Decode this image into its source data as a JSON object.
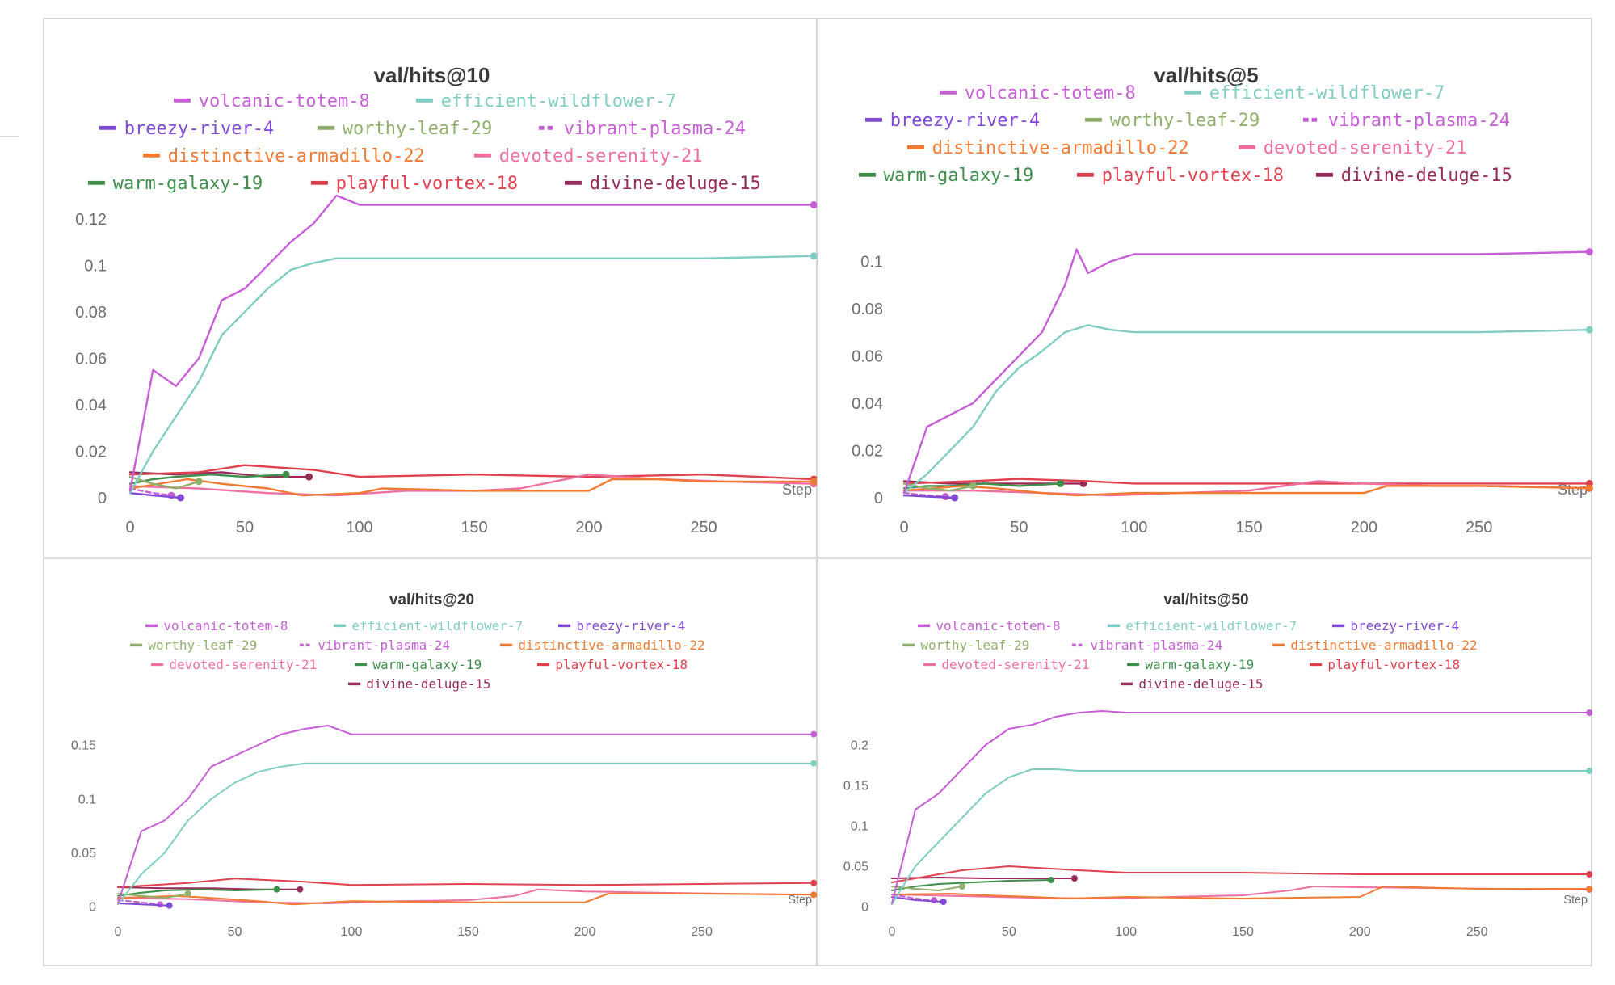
{
  "series_colors": {
    "volcanic-totem-8": "#c65ed6",
    "efficient-wildflower-7": "#80cdc1",
    "breezy-river-4": "#8049d6",
    "worthy-leaf-29": "#8fb06a",
    "vibrant-plasma-24": "#c65ed6",
    "distinctive-armadillo-22": "#f07a32",
    "devoted-serenity-21": "#ef6f9f",
    "warm-galaxy-19": "#3e8f4b",
    "playful-vortex-18": "#e0414f",
    "divine-deluge-15": "#962b5a"
  },
  "chart_data": [
    {
      "type": "line",
      "title": "val/hits@10",
      "xlabel": "Step",
      "ylabel": "",
      "xlim": [
        0,
        300
      ],
      "ylim": [
        0,
        0.13
      ],
      "x_ticks": [
        "0",
        "50",
        "100",
        "150",
        "200",
        "250"
      ],
      "y_ticks": [
        "0",
        "0.02",
        "0.04",
        "0.06",
        "0.08",
        "0.1",
        "0.12"
      ],
      "legend": [
        "volcanic-totem-8",
        "efficient-wildflower-7",
        "breezy-river-4",
        "worthy-leaf-29",
        "vibrant-plasma-24",
        "distinctive-armadillo-22",
        "devoted-serenity-21",
        "warm-galaxy-19",
        "playful-vortex-18",
        "divine-deluge-15"
      ],
      "series": [
        {
          "name": "volcanic-totem-8",
          "x": [
            0,
            10,
            20,
            30,
            40,
            50,
            60,
            70,
            80,
            90,
            100,
            150,
            200,
            250,
            298
          ],
          "y": [
            0.003,
            0.055,
            0.048,
            0.06,
            0.085,
            0.09,
            0.1,
            0.11,
            0.118,
            0.13,
            0.126,
            0.126,
            0.126,
            0.126,
            0.126
          ]
        },
        {
          "name": "efficient-wildflower-7",
          "x": [
            0,
            10,
            20,
            30,
            40,
            50,
            60,
            70,
            80,
            90,
            100,
            150,
            200,
            250,
            298
          ],
          "y": [
            0.002,
            0.02,
            0.035,
            0.05,
            0.07,
            0.08,
            0.09,
            0.098,
            0.101,
            0.103,
            0.103,
            0.103,
            0.103,
            0.103,
            0.104
          ]
        },
        {
          "name": "breezy-river-4",
          "x": [
            0,
            10,
            22
          ],
          "y": [
            0.002,
            0.001,
            0.0
          ]
        },
        {
          "name": "worthy-leaf-29",
          "x": [
            0,
            10,
            20,
            30
          ],
          "y": [
            0.009,
            0.006,
            0.004,
            0.007
          ]
        },
        {
          "name": "vibrant-plasma-24",
          "x": [
            0,
            10,
            18
          ],
          "y": [
            0.004,
            0.002,
            0.001
          ]
        },
        {
          "name": "distinctive-armadillo-22",
          "x": [
            0,
            25,
            40,
            60,
            75,
            100,
            110,
            150,
            200,
            210,
            230,
            250,
            298
          ],
          "y": [
            0.004,
            0.008,
            0.006,
            0.004,
            0.001,
            0.002,
            0.004,
            0.003,
            0.003,
            0.008,
            0.008,
            0.007,
            0.007
          ]
        },
        {
          "name": "devoted-serenity-21",
          "x": [
            0,
            30,
            60,
            90,
            120,
            150,
            170,
            200,
            230,
            260,
            298
          ],
          "y": [
            0.005,
            0.004,
            0.002,
            0.001,
            0.003,
            0.003,
            0.004,
            0.01,
            0.008,
            0.007,
            0.006
          ]
        },
        {
          "name": "warm-galaxy-19",
          "x": [
            0,
            10,
            20,
            35,
            50,
            68
          ],
          "y": [
            0.006,
            0.008,
            0.009,
            0.01,
            0.009,
            0.01
          ]
        },
        {
          "name": "playful-vortex-18",
          "x": [
            0,
            30,
            50,
            80,
            100,
            150,
            200,
            250,
            298
          ],
          "y": [
            0.01,
            0.011,
            0.014,
            0.012,
            0.009,
            0.01,
            0.009,
            0.01,
            0.008
          ]
        },
        {
          "name": "divine-deluge-15",
          "x": [
            0,
            20,
            40,
            60,
            78
          ],
          "y": [
            0.011,
            0.01,
            0.011,
            0.009,
            0.009
          ]
        }
      ]
    },
    {
      "type": "line",
      "title": "val/hits@5",
      "xlabel": "Step",
      "ylabel": "",
      "xlim": [
        0,
        300
      ],
      "ylim": [
        0,
        0.11
      ],
      "x_ticks": [
        "0",
        "50",
        "100",
        "150",
        "200",
        "250"
      ],
      "y_ticks": [
        "0",
        "0.02",
        "0.04",
        "0.06",
        "0.08",
        "0.1"
      ],
      "legend": [
        "volcanic-totem-8",
        "efficient-wildflower-7",
        "breezy-river-4",
        "worthy-leaf-29",
        "vibrant-plasma-24",
        "distinctive-armadillo-22",
        "devoted-serenity-21",
        "warm-galaxy-19",
        "playful-vortex-18",
        "divine-deluge-15"
      ],
      "series": [
        {
          "name": "volcanic-totem-8",
          "x": [
            0,
            10,
            20,
            30,
            40,
            50,
            60,
            70,
            75,
            80,
            90,
            100,
            150,
            200,
            250,
            298
          ],
          "y": [
            0.002,
            0.03,
            0.035,
            0.04,
            0.05,
            0.06,
            0.07,
            0.09,
            0.105,
            0.095,
            0.1,
            0.103,
            0.103,
            0.103,
            0.103,
            0.104
          ]
        },
        {
          "name": "efficient-wildflower-7",
          "x": [
            0,
            10,
            20,
            30,
            40,
            50,
            60,
            70,
            80,
            90,
            100,
            150,
            200,
            250,
            298
          ],
          "y": [
            0.002,
            0.01,
            0.02,
            0.03,
            0.045,
            0.055,
            0.062,
            0.07,
            0.073,
            0.071,
            0.07,
            0.07,
            0.07,
            0.07,
            0.071
          ]
        },
        {
          "name": "breezy-river-4",
          "x": [
            0,
            10,
            22
          ],
          "y": [
            0.001,
            0.0005,
            0.0
          ]
        },
        {
          "name": "worthy-leaf-29",
          "x": [
            0,
            10,
            20,
            30
          ],
          "y": [
            0.006,
            0.004,
            0.003,
            0.005
          ]
        },
        {
          "name": "vibrant-plasma-24",
          "x": [
            0,
            10,
            18
          ],
          "y": [
            0.002,
            0.001,
            0.0005
          ]
        },
        {
          "name": "distinctive-armadillo-22",
          "x": [
            0,
            25,
            40,
            60,
            75,
            100,
            150,
            200,
            210,
            250,
            298
          ],
          "y": [
            0.003,
            0.005,
            0.004,
            0.002,
            0.001,
            0.002,
            0.002,
            0.002,
            0.005,
            0.005,
            0.004
          ]
        },
        {
          "name": "devoted-serenity-21",
          "x": [
            0,
            30,
            60,
            90,
            120,
            150,
            180,
            200,
            230,
            260,
            298
          ],
          "y": [
            0.003,
            0.003,
            0.002,
            0.001,
            0.002,
            0.003,
            0.007,
            0.006,
            0.005,
            0.005,
            0.004
          ]
        },
        {
          "name": "warm-galaxy-19",
          "x": [
            0,
            10,
            20,
            35,
            50,
            68
          ],
          "y": [
            0.004,
            0.005,
            0.005,
            0.006,
            0.005,
            0.006
          ]
        },
        {
          "name": "playful-vortex-18",
          "x": [
            0,
            30,
            50,
            80,
            100,
            150,
            200,
            250,
            298
          ],
          "y": [
            0.006,
            0.007,
            0.008,
            0.007,
            0.006,
            0.006,
            0.006,
            0.006,
            0.006
          ]
        },
        {
          "name": "divine-deluge-15",
          "x": [
            0,
            20,
            40,
            60,
            78
          ],
          "y": [
            0.007,
            0.006,
            0.006,
            0.006,
            0.006
          ]
        }
      ]
    },
    {
      "type": "line",
      "title": "val/hits@20",
      "xlabel": "Step",
      "ylabel": "",
      "xlim": [
        0,
        300
      ],
      "ylim": [
        0,
        0.18
      ],
      "x_ticks": [
        "0",
        "50",
        "100",
        "150",
        "200",
        "250"
      ],
      "y_ticks": [
        "0",
        "0.05",
        "0.1",
        "0.15"
      ],
      "legend": [
        "volcanic-totem-8",
        "efficient-wildflower-7",
        "breezy-river-4",
        "worthy-leaf-29",
        "vibrant-plasma-24",
        "distinctive-armadillo-22",
        "devoted-serenity-21",
        "warm-galaxy-19",
        "playful-vortex-18",
        "divine-deluge-15"
      ],
      "series": [
        {
          "name": "volcanic-totem-8",
          "x": [
            0,
            10,
            20,
            30,
            40,
            50,
            60,
            70,
            80,
            90,
            100,
            150,
            200,
            250,
            298
          ],
          "y": [
            0.003,
            0.07,
            0.08,
            0.1,
            0.13,
            0.14,
            0.15,
            0.16,
            0.165,
            0.168,
            0.16,
            0.16,
            0.16,
            0.16,
            0.16
          ]
        },
        {
          "name": "efficient-wildflower-7",
          "x": [
            0,
            10,
            20,
            30,
            40,
            50,
            60,
            70,
            80,
            90,
            100,
            150,
            200,
            250,
            298
          ],
          "y": [
            0.002,
            0.03,
            0.05,
            0.08,
            0.1,
            0.115,
            0.125,
            0.13,
            0.133,
            0.133,
            0.133,
            0.133,
            0.133,
            0.133,
            0.133
          ]
        },
        {
          "name": "breezy-river-4",
          "x": [
            0,
            10,
            22
          ],
          "y": [
            0.003,
            0.002,
            0.001
          ]
        },
        {
          "name": "worthy-leaf-29",
          "x": [
            0,
            10,
            20,
            30
          ],
          "y": [
            0.012,
            0.01,
            0.008,
            0.012
          ]
        },
        {
          "name": "vibrant-plasma-24",
          "x": [
            0,
            10,
            18
          ],
          "y": [
            0.006,
            0.004,
            0.002
          ]
        },
        {
          "name": "distinctive-armadillo-22",
          "x": [
            0,
            25,
            40,
            60,
            75,
            100,
            150,
            200,
            210,
            250,
            298
          ],
          "y": [
            0.008,
            0.01,
            0.008,
            0.005,
            0.002,
            0.005,
            0.004,
            0.004,
            0.012,
            0.012,
            0.011
          ]
        },
        {
          "name": "devoted-serenity-21",
          "x": [
            0,
            30,
            60,
            90,
            120,
            150,
            170,
            180,
            200,
            230,
            260,
            298
          ],
          "y": [
            0.008,
            0.007,
            0.004,
            0.003,
            0.005,
            0.006,
            0.01,
            0.016,
            0.014,
            0.013,
            0.012,
            0.011
          ]
        },
        {
          "name": "warm-galaxy-19",
          "x": [
            0,
            10,
            20,
            35,
            50,
            68
          ],
          "y": [
            0.01,
            0.013,
            0.015,
            0.016,
            0.015,
            0.016
          ]
        },
        {
          "name": "playful-vortex-18",
          "x": [
            0,
            30,
            50,
            80,
            100,
            150,
            200,
            250,
            298
          ],
          "y": [
            0.018,
            0.022,
            0.026,
            0.023,
            0.02,
            0.021,
            0.02,
            0.021,
            0.022
          ]
        },
        {
          "name": "divine-deluge-15",
          "x": [
            0,
            20,
            40,
            60,
            78
          ],
          "y": [
            0.018,
            0.017,
            0.017,
            0.016,
            0.016
          ]
        }
      ]
    },
    {
      "type": "line",
      "title": "val/hits@50",
      "xlabel": "Step",
      "ylabel": "",
      "xlim": [
        0,
        300
      ],
      "ylim": [
        0,
        0.25
      ],
      "x_ticks": [
        "0",
        "50",
        "100",
        "150",
        "200",
        "250"
      ],
      "y_ticks": [
        "0",
        "0.05",
        "0.1",
        "0.15",
        "0.2"
      ],
      "legend": [
        "volcanic-totem-8",
        "efficient-wildflower-7",
        "breezy-river-4",
        "worthy-leaf-29",
        "vibrant-plasma-24",
        "distinctive-armadillo-22",
        "devoted-serenity-21",
        "warm-galaxy-19",
        "playful-vortex-18",
        "divine-deluge-15"
      ],
      "series": [
        {
          "name": "volcanic-totem-8",
          "x": [
            0,
            10,
            20,
            30,
            40,
            50,
            60,
            70,
            80,
            90,
            100,
            150,
            200,
            250,
            298
          ],
          "y": [
            0.004,
            0.12,
            0.14,
            0.17,
            0.2,
            0.22,
            0.225,
            0.235,
            0.24,
            0.242,
            0.24,
            0.24,
            0.24,
            0.24,
            0.24
          ]
        },
        {
          "name": "efficient-wildflower-7",
          "x": [
            0,
            10,
            20,
            30,
            40,
            50,
            60,
            70,
            80,
            90,
            100,
            150,
            200,
            250,
            298
          ],
          "y": [
            0.003,
            0.05,
            0.08,
            0.11,
            0.14,
            0.16,
            0.17,
            0.17,
            0.168,
            0.168,
            0.168,
            0.168,
            0.168,
            0.168,
            0.168
          ]
        },
        {
          "name": "breezy-river-4",
          "x": [
            0,
            10,
            22
          ],
          "y": [
            0.012,
            0.008,
            0.006
          ]
        },
        {
          "name": "worthy-leaf-29",
          "x": [
            0,
            10,
            20,
            30
          ],
          "y": [
            0.025,
            0.022,
            0.02,
            0.025
          ]
        },
        {
          "name": "vibrant-plasma-24",
          "x": [
            0,
            10,
            18
          ],
          "y": [
            0.015,
            0.01,
            0.008
          ]
        },
        {
          "name": "distinctive-armadillo-22",
          "x": [
            0,
            25,
            40,
            60,
            75,
            100,
            150,
            200,
            210,
            250,
            298
          ],
          "y": [
            0.015,
            0.016,
            0.014,
            0.012,
            0.01,
            0.012,
            0.01,
            0.012,
            0.025,
            0.022,
            0.022
          ]
        },
        {
          "name": "devoted-serenity-21",
          "x": [
            0,
            30,
            60,
            90,
            120,
            150,
            170,
            180,
            200,
            230,
            260,
            298
          ],
          "y": [
            0.015,
            0.013,
            0.011,
            0.01,
            0.012,
            0.014,
            0.02,
            0.025,
            0.024,
            0.023,
            0.022,
            0.021
          ]
        },
        {
          "name": "warm-galaxy-19",
          "x": [
            0,
            10,
            20,
            35,
            50,
            68
          ],
          "y": [
            0.02,
            0.025,
            0.028,
            0.03,
            0.032,
            0.033
          ]
        },
        {
          "name": "playful-vortex-18",
          "x": [
            0,
            30,
            50,
            80,
            100,
            150,
            200,
            250,
            298
          ],
          "y": [
            0.03,
            0.045,
            0.05,
            0.045,
            0.042,
            0.042,
            0.04,
            0.04,
            0.04
          ]
        },
        {
          "name": "divine-deluge-15",
          "x": [
            0,
            20,
            40,
            60,
            78
          ],
          "y": [
            0.035,
            0.036,
            0.035,
            0.035,
            0.035
          ]
        }
      ]
    }
  ]
}
